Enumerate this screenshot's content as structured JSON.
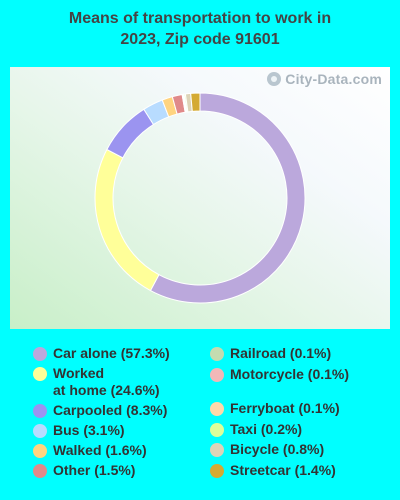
{
  "chart_data": {
    "type": "pie",
    "title_line1": "Means of transportation to work in",
    "title_line2": "2023, Zip code 91601",
    "watermark": "City-Data.com",
    "slices": [
      {
        "label": "Car alone (57.3%)",
        "value": 57.3,
        "color": "#bba8dc"
      },
      {
        "label": "Worked at home (24.6%)",
        "value": 24.6,
        "color": "#ffff99"
      },
      {
        "label": "Carpooled (8.3%)",
        "value": 8.3,
        "color": "#9b94f0"
      },
      {
        "label": "Bus (3.1%)",
        "value": 3.1,
        "color": "#b8dcff"
      },
      {
        "label": "Walked (1.6%)",
        "value": 1.6,
        "color": "#ffd480"
      },
      {
        "label": "Other (1.5%)",
        "value": 1.5,
        "color": "#e08a8a"
      },
      {
        "label": "Railroad (0.1%)",
        "value": 0.1,
        "color": "#c4dcb0"
      },
      {
        "label": "Motorcycle (0.1%)",
        "value": 0.1,
        "color": "#f2b8b8"
      },
      {
        "label": "Ferryboat (0.1%)",
        "value": 0.1,
        "color": "#ffd9aa"
      },
      {
        "label": "Taxi (0.2%)",
        "value": 0.2,
        "color": "#dcff9a"
      },
      {
        "label": "Bicycle (0.8%)",
        "value": 0.8,
        "color": "#ddd4b8"
      },
      {
        "label": "Streetcar (1.4%)",
        "value": 1.4,
        "color": "#d4aa33"
      }
    ]
  },
  "legend": {
    "left": [
      {
        "line1": "Car alone (57.3%)",
        "line2": "",
        "color": "#bba8dc"
      },
      {
        "line1": "Worked",
        "line2": "at home (24.6%)",
        "color": "#ffff99"
      },
      {
        "line1": "Carpooled (8.3%)",
        "line2": "",
        "color": "#9b94f0"
      },
      {
        "line1": "Bus (3.1%)",
        "line2": "",
        "color": "#b8dcff"
      },
      {
        "line1": "Walked (1.6%)",
        "line2": "",
        "color": "#ffd480"
      },
      {
        "line1": "Other (1.5%)",
        "line2": "",
        "color": "#e08a8a"
      }
    ],
    "right": [
      {
        "line1": "Railroad (0.1%)",
        "color": "#c4dcb0"
      },
      {
        "line1": "Motorcycle (0.1%)",
        "color": "#f2b8b8"
      },
      {
        "line1": "Ferryboat (0.1%)",
        "color": "#ffd9aa"
      },
      {
        "line1": "Taxi (0.2%)",
        "color": "#dcff9a"
      },
      {
        "line1": "Bicycle (0.8%)",
        "color": "#ddd4b8"
      },
      {
        "line1": "Streetcar (1.4%)",
        "color": "#d4aa33"
      }
    ]
  }
}
